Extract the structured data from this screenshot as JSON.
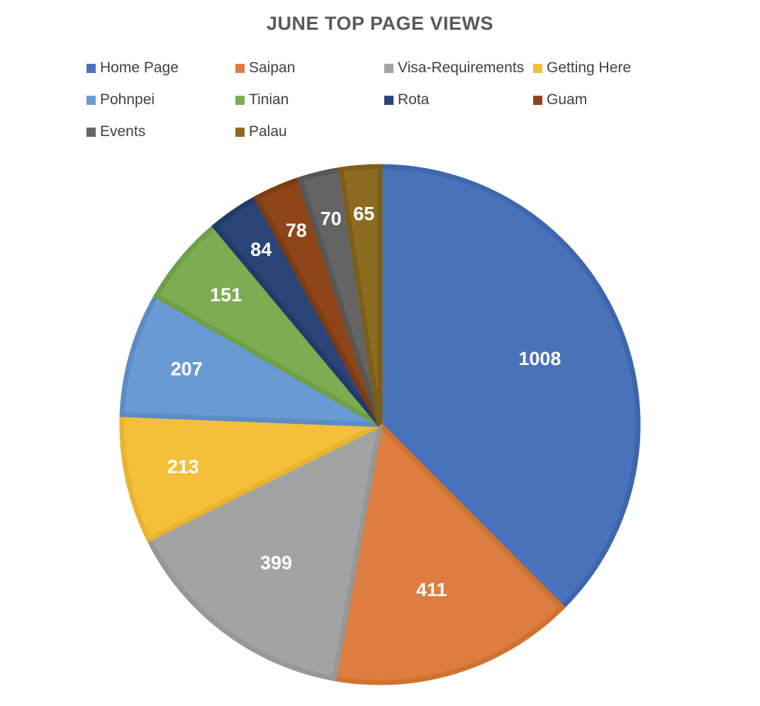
{
  "chart_data": {
    "type": "pie",
    "title": "JUNE TOP PAGE VIEWS",
    "legend_position": "top",
    "categories": [
      "Home Page",
      "Saipan",
      "Visa-Requirements",
      "Getting Here",
      "Pohnpei",
      "Tinian",
      "Rota",
      "Guam",
      "Events",
      "Palau"
    ],
    "values": [
      1008,
      411,
      399,
      213,
      207,
      151,
      84,
      78,
      70,
      65
    ],
    "colors": [
      "#4a72bb",
      "#dd7d3f",
      "#a3a3a3",
      "#f5bf3b",
      "#6a9ad4",
      "#7cad52",
      "#2b4478",
      "#8e4519",
      "#646464",
      "#8d6c21"
    ],
    "border_colors": [
      "#3f66ad",
      "#d0722f",
      "#979797",
      "#e9b52e",
      "#5a8cc8",
      "#6f9f45",
      "#233a6a",
      "#7e3b12",
      "#575757",
      "#7d5e18"
    ],
    "data_labels": [
      "1008",
      "411",
      "399",
      "213",
      "207",
      "151",
      "84",
      "78",
      "70",
      "65"
    ]
  }
}
